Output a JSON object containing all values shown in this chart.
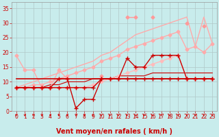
{
  "xlabel": "Vent moyen/en rafales ( km/h )",
  "xlim": [
    -0.5,
    23.5
  ],
  "ylim": [
    0,
    37
  ],
  "yticks": [
    0,
    5,
    10,
    15,
    20,
    25,
    30,
    35
  ],
  "xticks": [
    0,
    1,
    2,
    3,
    4,
    5,
    6,
    7,
    8,
    9,
    10,
    11,
    12,
    13,
    14,
    15,
    16,
    17,
    18,
    19,
    20,
    21,
    22,
    23
  ],
  "bg_color": "#c8ecec",
  "grid_color": "#b0c8c8",
  "lines": [
    {
      "x": [
        0,
        1,
        2,
        3,
        4,
        5,
        6,
        7,
        8,
        9,
        10,
        11,
        12,
        13,
        14,
        15,
        16,
        17,
        18,
        19,
        20,
        21,
        22,
        23
      ],
      "y": [
        null,
        null,
        null,
        null,
        null,
        null,
        null,
        null,
        null,
        null,
        12,
        null,
        null,
        32,
        32,
        null,
        32,
        null,
        null,
        null,
        30,
        null,
        29,
        null
      ],
      "color": "#ff9999",
      "marker": "D",
      "markersize": 2.5,
      "linewidth": 1.0,
      "zorder": 3,
      "linestyle": "-"
    },
    {
      "x": [
        0,
        1,
        2,
        3,
        4,
        5,
        6,
        7,
        8,
        9,
        10,
        11,
        12,
        13,
        14,
        15,
        16,
        17,
        18,
        19,
        20,
        21,
        22,
        23
      ],
      "y": [
        8,
        9,
        10,
        11,
        12,
        13,
        14,
        15,
        16,
        17,
        19,
        20,
        22,
        24,
        26,
        27,
        28,
        29,
        30,
        31,
        32,
        22,
        32,
        23
      ],
      "color": "#ffaaaa",
      "marker": null,
      "markersize": 2,
      "linewidth": 1.0,
      "zorder": 2,
      "linestyle": "-"
    },
    {
      "x": [
        0,
        1,
        2,
        3,
        4,
        5,
        6,
        7,
        8,
        9,
        10,
        11,
        12,
        13,
        14,
        15,
        16,
        17,
        18,
        19,
        20,
        21,
        22,
        23
      ],
      "y": [
        8,
        8,
        9,
        9,
        10,
        11,
        12,
        13,
        14,
        15,
        17,
        18,
        19,
        21,
        22,
        23,
        24,
        25,
        26,
        27,
        21,
        22,
        20,
        23
      ],
      "color": "#ffaaaa",
      "marker": "D",
      "markersize": 2.5,
      "linewidth": 1.0,
      "zorder": 3,
      "linestyle": "-"
    },
    {
      "x": [
        0,
        1,
        2,
        3,
        4,
        5,
        6,
        7,
        8,
        9,
        10,
        11,
        12,
        13,
        14,
        15,
        16,
        17,
        18,
        19,
        20,
        21,
        22,
        23
      ],
      "y": [
        8,
        8,
        8,
        8,
        8,
        8,
        8,
        8,
        8,
        9,
        10,
        11,
        12,
        13,
        14,
        15,
        16,
        17,
        18,
        19,
        11,
        11,
        11,
        11
      ],
      "color": "#ffbbbb",
      "marker": "D",
      "markersize": 2.5,
      "linewidth": 1.0,
      "zorder": 3,
      "linestyle": "-"
    },
    {
      "x": [
        0,
        1,
        2,
        3,
        4,
        5,
        6
      ],
      "y": [
        19,
        14,
        14,
        8,
        8,
        14,
        11
      ],
      "color": "#ffaaaa",
      "marker": "D",
      "markersize": 2.5,
      "linewidth": 1.0,
      "zorder": 3,
      "linestyle": "-"
    },
    {
      "x": [
        0,
        1,
        2,
        3,
        4,
        5,
        6,
        7,
        8,
        9,
        10,
        11,
        12,
        13,
        14,
        15,
        16,
        17,
        18,
        19,
        20,
        21,
        22,
        23
      ],
      "y": [
        11,
        11,
        11,
        11,
        11,
        11,
        11,
        11,
        11,
        11,
        11,
        11,
        11,
        11,
        11,
        11,
        11,
        11,
        11,
        11,
        11,
        11,
        11,
        11
      ],
      "color": "#cc0000",
      "marker": null,
      "markersize": 2,
      "linewidth": 1.2,
      "zorder": 4,
      "linestyle": "-"
    },
    {
      "x": [
        0,
        1,
        2,
        3,
        4,
        5,
        6,
        7,
        8,
        9,
        10,
        11,
        12,
        13,
        14,
        15,
        16,
        17,
        18,
        19,
        20,
        21,
        22,
        23
      ],
      "y": [
        8,
        8,
        8,
        8,
        9,
        9,
        10,
        10,
        10,
        11,
        11,
        11,
        12,
        12,
        12,
        12,
        13,
        13,
        13,
        13,
        13,
        13,
        13,
        13
      ],
      "color": "#cc0000",
      "marker": null,
      "markersize": 2,
      "linewidth": 0.8,
      "zorder": 2,
      "linestyle": "-"
    },
    {
      "x": [
        0,
        1,
        2,
        3,
        4,
        5,
        6,
        7,
        8,
        9,
        10,
        11,
        12,
        13,
        14,
        15,
        16,
        17,
        18,
        19,
        20,
        21,
        22,
        23
      ],
      "y": [
        8,
        8,
        8,
        8,
        8,
        11,
        11,
        1,
        4,
        4,
        11,
        11,
        11,
        11,
        11,
        11,
        11,
        11,
        11,
        11,
        11,
        11,
        11,
        11
      ],
      "color": "#cc0000",
      "marker": "+",
      "markersize": 4,
      "linewidth": 1.0,
      "zorder": 4,
      "linestyle": "-"
    },
    {
      "x": [
        0,
        1,
        2,
        3,
        4,
        5,
        6,
        7,
        8,
        9,
        10,
        11,
        12,
        13,
        14,
        15,
        16,
        17,
        18,
        19,
        20,
        21,
        22,
        23
      ],
      "y": [
        8,
        8,
        8,
        8,
        8,
        8,
        8,
        8,
        8,
        8,
        11,
        11,
        11,
        18,
        15,
        15,
        19,
        19,
        19,
        19,
        11,
        11,
        11,
        11
      ],
      "color": "#cc0000",
      "marker": "+",
      "markersize": 4,
      "linewidth": 1.0,
      "zorder": 4,
      "linestyle": "-"
    }
  ],
  "xlabel_color": "#cc0000",
  "xlabel_fontsize": 7,
  "tick_color": "#cc0000",
  "tick_fontsize": 5.5,
  "arrow_color": "#cc0000"
}
